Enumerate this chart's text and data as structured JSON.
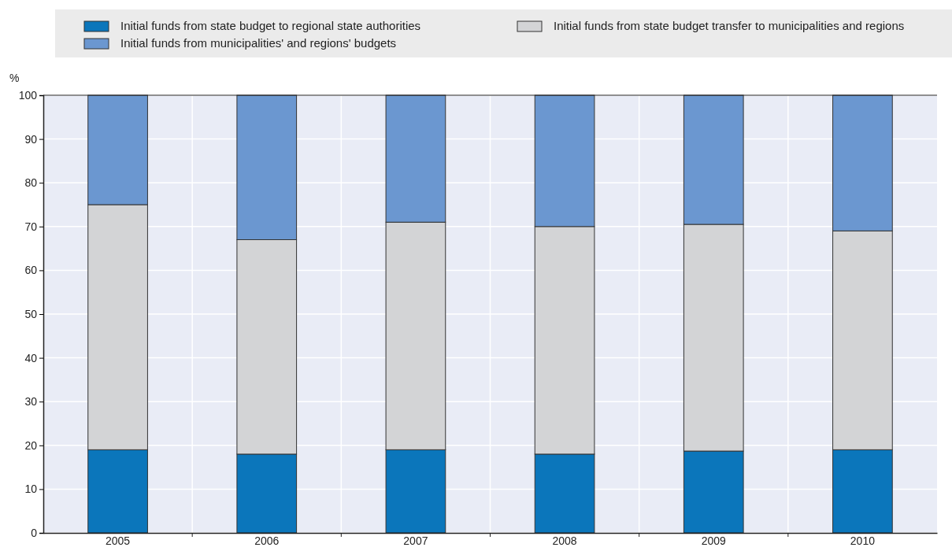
{
  "chart_data": {
    "type": "bar",
    "stacked": true,
    "ylabel": "%",
    "categories": [
      "2005",
      "2006",
      "2007",
      "2008",
      "2009",
      "2010"
    ],
    "series": [
      {
        "name": "Initial funds from state budget to regional state authorities",
        "color": "#0b76bb",
        "values": [
          19,
          18,
          19,
          18,
          18.7,
          19
        ]
      },
      {
        "name": "Initial funds from state budget transfer to municipalities and regions",
        "color": "#d3d4d6",
        "values": [
          56,
          49,
          52,
          52,
          51.8,
          50
        ]
      },
      {
        "name": "Initial funds from municipalities' and regions' budgets",
        "color": "#6b97d0",
        "values": [
          25,
          33,
          29,
          30,
          29.5,
          31
        ]
      }
    ],
    "ylim": [
      0,
      100
    ],
    "yticks": [
      0,
      10,
      20,
      30,
      40,
      50,
      60,
      70,
      80,
      90,
      100
    ],
    "grid": true,
    "legend": "top"
  }
}
